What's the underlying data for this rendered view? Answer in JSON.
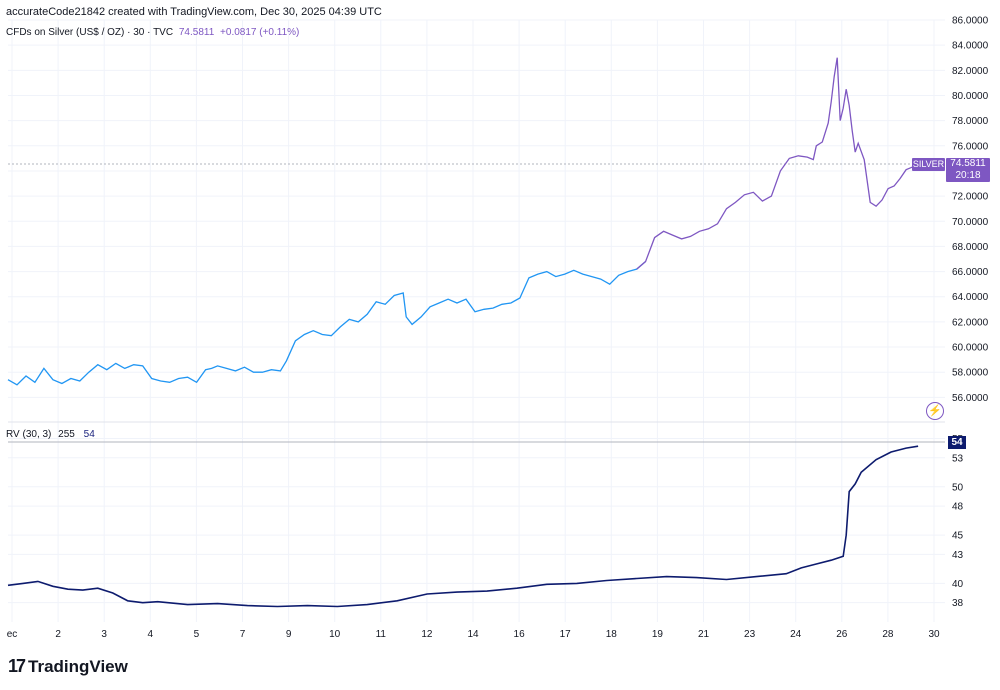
{
  "header": {
    "credit": "accurateCode21842 created with TradingView.com, Dec 30, 2025 04:39 UTC",
    "symbol_title": "CFDs on Silver (US$ / OZ) · 30 · TVC",
    "last_value": "74.5811",
    "change": "+0.0817 (+0.11%)"
  },
  "price_tag": {
    "symbol": "SILVER",
    "price": "74.5811",
    "countdown": "20:18"
  },
  "rv_legend": {
    "name": "RV (30, 3)",
    "param": "255",
    "value": "54"
  },
  "rv_tag": "54",
  "brand": {
    "logo": "17",
    "name": "TradingView"
  },
  "colors": {
    "price_blue": "#2196f3",
    "price_purple": "#7e57c2",
    "rv_line": "#0d1b6e",
    "grid": "#f0f3fa"
  },
  "chart_data": [
    {
      "type": "line",
      "title": "CFDs on Silver (US$ / OZ) · 30 · TVC",
      "x_ticks": [
        "ec",
        "2",
        "3",
        "4",
        "5",
        "7",
        "9",
        "10",
        "11",
        "12",
        "14",
        "16",
        "17",
        "18",
        "19",
        "21",
        "23",
        "24",
        "26",
        "28",
        "30"
      ],
      "y_ticks": [
        "56.0000",
        "58.0000",
        "60.0000",
        "62.0000",
        "64.0000",
        "66.0000",
        "68.0000",
        "70.0000",
        "72.0000",
        "74.0000",
        "76.0000",
        "78.0000",
        "80.0000",
        "82.0000",
        "84.0000",
        "86.0000"
      ],
      "ylim": [
        54.2,
        86.0
      ],
      "grid": true,
      "series": [
        {
          "x": [
            0,
            0.3,
            0.6,
            0.9,
            1.2,
            1.5,
            1.8,
            2.1,
            2.4,
            2.7,
            3.0,
            3.3,
            3.6,
            3.9,
            4.2,
            4.5,
            4.8,
            5.1,
            5.4,
            5.7,
            6.0,
            6.3,
            6.6,
            6.8,
            7.0,
            7.3,
            7.6,
            7.9,
            8.2,
            8.5,
            8.8,
            9.1,
            9.3,
            9.6,
            9.9,
            10.2,
            10.5,
            10.8,
            11.1,
            11.4,
            11.7,
            12.0,
            12.3,
            12.6,
            12.9,
            13.2,
            13.3,
            13.5,
            13.8,
            14.1,
            14.4,
            14.7,
            15.0,
            15.3,
            15.6,
            15.9,
            16.2,
            16.5,
            16.8,
            17.1,
            17.4,
            17.7,
            18.0,
            18.3,
            18.6,
            18.9,
            19.2,
            19.5,
            19.8,
            20.1,
            20.4,
            20.7,
            21.0,
            21.3,
            21.6,
            21.9,
            22.2,
            22.5,
            22.8,
            23.1,
            23.4,
            23.7,
            24.0,
            24.3,
            24.6,
            24.9,
            25.2,
            25.5,
            25.8,
            26.1,
            26.4,
            26.7,
            26.9,
            27.0,
            27.2,
            27.4,
            27.5,
            27.6,
            27.7,
            27.8,
            27.9,
            28.0,
            28.1,
            28.2,
            28.3,
            28.4,
            28.6,
            28.8,
            29.0,
            29.2,
            29.4,
            29.6,
            29.8,
            30.0,
            30.2,
            30.4,
            30.5
          ],
          "values": [
            57.4,
            57.0,
            57.7,
            57.2,
            58.3,
            57.4,
            57.1,
            57.5,
            57.3,
            58.0,
            58.6,
            58.2,
            58.7,
            58.3,
            58.6,
            58.5,
            57.5,
            57.3,
            57.2,
            57.5,
            57.6,
            57.2,
            58.2,
            58.3,
            58.5,
            58.3,
            58.1,
            58.4,
            58.0,
            58.0,
            58.2,
            58.1,
            58.9,
            60.5,
            61.0,
            61.3,
            61.0,
            60.9,
            61.6,
            62.2,
            62.0,
            62.6,
            63.6,
            63.4,
            64.1,
            64.3,
            62.4,
            61.8,
            62.4,
            63.2,
            63.5,
            63.8,
            63.5,
            63.8,
            62.8,
            63.0,
            63.1,
            63.4,
            63.5,
            63.9,
            65.5,
            65.8,
            66.0,
            65.6,
            65.8,
            66.1,
            65.8,
            65.6,
            65.4,
            65.0,
            65.7,
            66.0,
            66.2,
            66.8,
            68.7,
            69.2,
            68.9,
            68.6,
            68.8,
            69.2,
            69.4,
            69.8,
            71.0,
            71.5,
            72.1,
            72.3,
            71.6,
            72.0,
            74.0,
            75.0,
            75.2,
            75.1,
            74.9,
            76.0,
            76.3,
            77.8,
            79.5,
            81.5,
            83.0,
            78.0,
            79.0,
            80.5,
            79.2,
            77.2,
            75.5,
            76.2,
            74.9,
            71.5,
            71.2,
            71.7,
            72.6,
            72.8,
            73.4,
            74.1,
            74.3,
            74.5,
            74.58
          ],
          "color_split_x": 21.3
        }
      ]
    },
    {
      "type": "line",
      "title": "RV (30, 3)",
      "y_ticks": [
        "38",
        "40",
        "43",
        "45",
        "48",
        "50",
        "53",
        "55"
      ],
      "ylim": [
        36.0,
        56.5
      ],
      "grid": true,
      "series": [
        {
          "x": [
            0,
            0.5,
            1.0,
            1.5,
            2.0,
            2.5,
            3.0,
            3.5,
            4.0,
            4.5,
            5.0,
            6.0,
            7.0,
            8.0,
            9.0,
            10.0,
            11.0,
            12.0,
            13.0,
            14.0,
            15.0,
            16.0,
            17.0,
            18.0,
            19.0,
            20.0,
            21.0,
            22.0,
            23.0,
            24.0,
            25.0,
            26.0,
            26.5,
            27.0,
            27.5,
            27.9,
            28.0,
            28.1,
            28.3,
            28.5,
            29.0,
            29.5,
            30.0,
            30.4
          ],
          "values": [
            39.8,
            40.0,
            40.2,
            39.7,
            39.4,
            39.3,
            39.5,
            39.0,
            38.2,
            38.0,
            38.1,
            37.8,
            37.9,
            37.7,
            37.6,
            37.7,
            37.6,
            37.8,
            38.2,
            38.9,
            39.1,
            39.2,
            39.5,
            39.9,
            40.0,
            40.3,
            40.5,
            40.7,
            40.6,
            40.4,
            40.7,
            41.0,
            41.6,
            42.0,
            42.4,
            42.8,
            45.0,
            49.5,
            50.3,
            51.5,
            52.8,
            53.6,
            54.0,
            54.2
          ]
        }
      ]
    }
  ]
}
